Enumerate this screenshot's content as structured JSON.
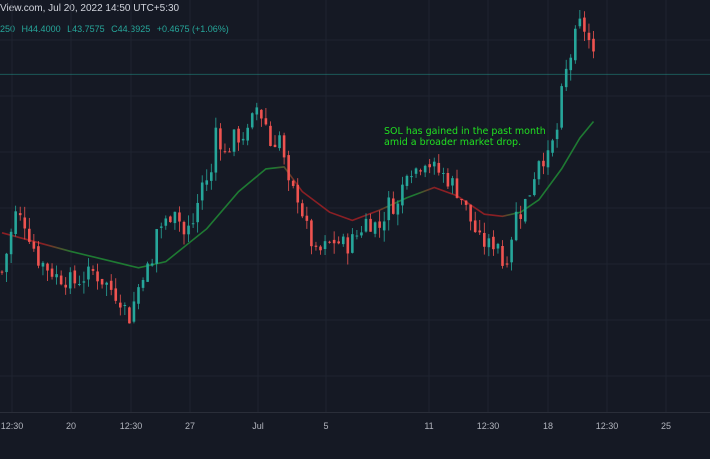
{
  "header": {
    "source_line": "View.com, Jul 20, 2022 14:50 UTC+5:30"
  },
  "ohlc": {
    "open_fragment": "250",
    "high": "H44.4000",
    "low": "L43.7575",
    "close": "C44.3925",
    "change": "+0.4675 (+1.06%)"
  },
  "annotation": {
    "line1": "SOL has gained in the past month",
    "line2": "amid a broader market drop."
  },
  "colors": {
    "background": "#151924",
    "up_candle": "#26a69a",
    "down_candle": "#ef5350",
    "ma_above": "#1e7a32",
    "ma_below": "#8b1f24",
    "annotation": "#21e021"
  },
  "chart_data": {
    "type": "candlestick",
    "ylim": [
      28,
      48
    ],
    "x_tick_labels": [
      "12:30",
      "20",
      "12:30",
      "27",
      "Jul",
      "5",
      "11",
      "12:30",
      "18",
      "12:30",
      "25"
    ],
    "price_series": [
      [
        0,
        34.8
      ],
      [
        3,
        37.6
      ],
      [
        5,
        37.2
      ],
      [
        8,
        35.4
      ],
      [
        12,
        34.6
      ],
      [
        16,
        34.3
      ],
      [
        20,
        34.8
      ],
      [
        23,
        34.2
      ],
      [
        26,
        33.5
      ],
      [
        28,
        32.6
      ],
      [
        31,
        34.8
      ],
      [
        33,
        35.1
      ],
      [
        34,
        36.9
      ],
      [
        36,
        37.2
      ],
      [
        38,
        38.0
      ],
      [
        40,
        36.6
      ],
      [
        42,
        37.2
      ],
      [
        44,
        39.1
      ],
      [
        46,
        39.5
      ],
      [
        47,
        41.8
      ],
      [
        49,
        40.5
      ],
      [
        51,
        41.3
      ],
      [
        54,
        41.5
      ],
      [
        56,
        42.8
      ],
      [
        58,
        42.0
      ],
      [
        59,
        41.0
      ],
      [
        61,
        41.4
      ],
      [
        63,
        38.9
      ],
      [
        65,
        38.5
      ],
      [
        67,
        36.9
      ],
      [
        69,
        35.6
      ],
      [
        71,
        36.0
      ],
      [
        73,
        36.3
      ],
      [
        76,
        36.1
      ],
      [
        78,
        36.6
      ],
      [
        80,
        37.3
      ],
      [
        83,
        37.0
      ],
      [
        85,
        38.1
      ],
      [
        87,
        38.0
      ],
      [
        89,
        39.9
      ],
      [
        91,
        39.8
      ],
      [
        93,
        40.3
      ],
      [
        95,
        39.8
      ],
      [
        97,
        39.5
      ],
      [
        99,
        39.1
      ],
      [
        101,
        38.4
      ],
      [
        103,
        37.3
      ],
      [
        105,
        36.3
      ],
      [
        107,
        36.1
      ],
      [
        109,
        36.3
      ],
      [
        110,
        35.2
      ],
      [
        111,
        35.6
      ],
      [
        113,
        37.6
      ],
      [
        114,
        37.7
      ],
      [
        116,
        38.7
      ],
      [
        118,
        40.4
      ],
      [
        120,
        40.3
      ],
      [
        122,
        41.7
      ],
      [
        123,
        43.4
      ],
      [
        124,
        44.5
      ],
      [
        125,
        45.3
      ],
      [
        126,
        46.2
      ],
      [
        127,
        46.8
      ],
      [
        128,
        46.6
      ],
      [
        129,
        46.0
      ],
      [
        130,
        45.2
      ]
    ],
    "moving_average": [
      [
        0,
        36.7
      ],
      [
        15,
        35.8
      ],
      [
        30,
        35.0
      ],
      [
        36,
        35.3
      ],
      [
        45,
        36.9
      ],
      [
        52,
        38.7
      ],
      [
        58,
        39.8
      ],
      [
        62,
        39.9
      ],
      [
        66,
        38.7
      ],
      [
        72,
        37.7
      ],
      [
        77,
        37.3
      ],
      [
        83,
        37.8
      ],
      [
        89,
        38.4
      ],
      [
        95,
        38.9
      ],
      [
        100,
        38.5
      ],
      [
        106,
        37.6
      ],
      [
        110,
        37.5
      ],
      [
        114,
        37.7
      ],
      [
        118,
        38.3
      ],
      [
        123,
        39.8
      ],
      [
        127,
        41.3
      ],
      [
        130,
        42.1
      ]
    ],
    "last_price": 44.3925
  }
}
